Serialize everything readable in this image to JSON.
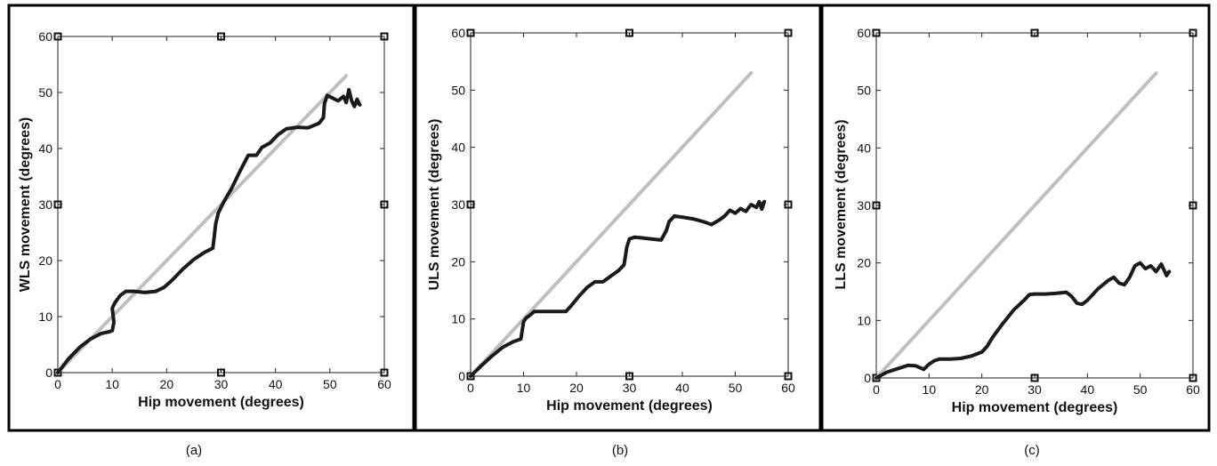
{
  "colors": {
    "measured": "#1a1a1a",
    "identity": "#bfbfbf",
    "frame": "#000000"
  },
  "chart_data": [
    {
      "type": "line",
      "caption": "(a)",
      "xlabel": "Hip movement (degrees)",
      "ylabel": "WLS  movement (degrees)",
      "xlim": [
        0,
        60
      ],
      "ylim": [
        0,
        60
      ],
      "xticks": [
        0,
        10,
        20,
        30,
        40,
        50,
        60
      ],
      "yticks": [
        0,
        10,
        20,
        30,
        40,
        50,
        60
      ],
      "grid": false,
      "series": [
        {
          "role": "identity",
          "x": [
            0,
            53
          ],
          "y": [
            0,
            53
          ]
        },
        {
          "role": "measured",
          "x": [
            0,
            2,
            4,
            6,
            8,
            9.5,
            10,
            10.3,
            10,
            10.5,
            11.5,
            12.5,
            14,
            16,
            18,
            19.5,
            21,
            23,
            25,
            27,
            28.5,
            29,
            29.5,
            30.5,
            32,
            33.5,
            35,
            36.5,
            37.5,
            39,
            40.5,
            42,
            44,
            46,
            48,
            48.8,
            49,
            49.5,
            50.5,
            51.5,
            52.5,
            53,
            53.5,
            54,
            54.5,
            55,
            55.5,
            55
          ],
          "y": [
            0,
            2.5,
            4.5,
            6,
            7,
            7.3,
            7.5,
            9,
            11.5,
            12.5,
            13.8,
            14.5,
            14.5,
            14.3,
            14.5,
            15.2,
            16.5,
            18.5,
            20.2,
            21.5,
            22.2,
            26.5,
            28.5,
            30.5,
            33,
            36,
            38.8,
            38.8,
            40.2,
            41,
            42.5,
            43.5,
            43.8,
            43.7,
            44.5,
            45.5,
            48,
            49.5,
            49,
            48.5,
            49.3,
            48.2,
            50.5,
            48.5,
            47.5,
            48.8,
            47.8,
            48.2
          ]
        }
      ]
    },
    {
      "type": "line",
      "caption": "(b)",
      "xlabel": "Hip movement (degrees)",
      "ylabel": "ULS  movement (degrees)",
      "xlim": [
        0,
        60
      ],
      "ylim": [
        0,
        60
      ],
      "xticks": [
        0,
        10,
        20,
        30,
        40,
        50,
        60
      ],
      "yticks": [
        0,
        10,
        20,
        30,
        40,
        50,
        60
      ],
      "grid": false,
      "series": [
        {
          "role": "identity",
          "x": [
            0,
            53
          ],
          "y": [
            0,
            53
          ]
        },
        {
          "role": "measured",
          "x": [
            0,
            2,
            4,
            6,
            8,
            9.5,
            10,
            10.5,
            11,
            12,
            14,
            16,
            18,
            19,
            20.5,
            22,
            23.5,
            25,
            26.5,
            28,
            29,
            29.5,
            30,
            31,
            32,
            34,
            36,
            37,
            37.5,
            38.5,
            40,
            42,
            44,
            45.5,
            47,
            48,
            49,
            50,
            51,
            52,
            53,
            54,
            54.5,
            55,
            55.5,
            55
          ],
          "y": [
            0,
            1.8,
            3.5,
            5,
            6,
            6.5,
            9.5,
            10.2,
            10.5,
            11.3,
            11.3,
            11.3,
            11.3,
            12.3,
            14,
            15.5,
            16.5,
            16.5,
            17.5,
            18.5,
            19.5,
            22.5,
            24,
            24.3,
            24.2,
            24,
            23.8,
            25.5,
            27,
            28,
            27.8,
            27.5,
            27,
            26.5,
            27.3,
            28,
            29,
            28.5,
            29.3,
            28.8,
            30,
            29.5,
            30.5,
            29.2,
            30.5,
            30
          ]
        }
      ]
    },
    {
      "type": "line",
      "caption": "(c)",
      "xlabel": "Hip movement (degrees)",
      "ylabel": "LLS  movement (degrees)",
      "xlim": [
        0,
        60
      ],
      "ylim": [
        0,
        60
      ],
      "xticks": [
        0,
        10,
        20,
        30,
        40,
        50,
        60
      ],
      "yticks": [
        0,
        10,
        20,
        30,
        40,
        50,
        60
      ],
      "grid": false,
      "series": [
        {
          "role": "identity",
          "x": [
            0,
            53
          ],
          "y": [
            0,
            53
          ]
        },
        {
          "role": "measured",
          "x": [
            0,
            2,
            4,
            6,
            7.5,
            9,
            10,
            11,
            12,
            14,
            16,
            18,
            20,
            21,
            22,
            24,
            26,
            28,
            29,
            30,
            32,
            34,
            36,
            37,
            38,
            39,
            40,
            42,
            44,
            45,
            46,
            47,
            48,
            49,
            50,
            51,
            52,
            53,
            54,
            55,
            55.5,
            55
          ],
          "y": [
            0,
            1,
            1.6,
            2.2,
            2.1,
            1.5,
            2.4,
            3,
            3.3,
            3.3,
            3.4,
            3.8,
            4.5,
            5.5,
            7,
            9.5,
            11.8,
            13.5,
            14.5,
            14.6,
            14.6,
            14.7,
            14.9,
            14.2,
            13,
            12.8,
            13.5,
            15.5,
            17,
            17.5,
            16.5,
            16.2,
            17.5,
            19.5,
            20,
            19,
            19.5,
            18.5,
            19.8,
            17.8,
            18.5,
            18
          ]
        }
      ]
    }
  ]
}
